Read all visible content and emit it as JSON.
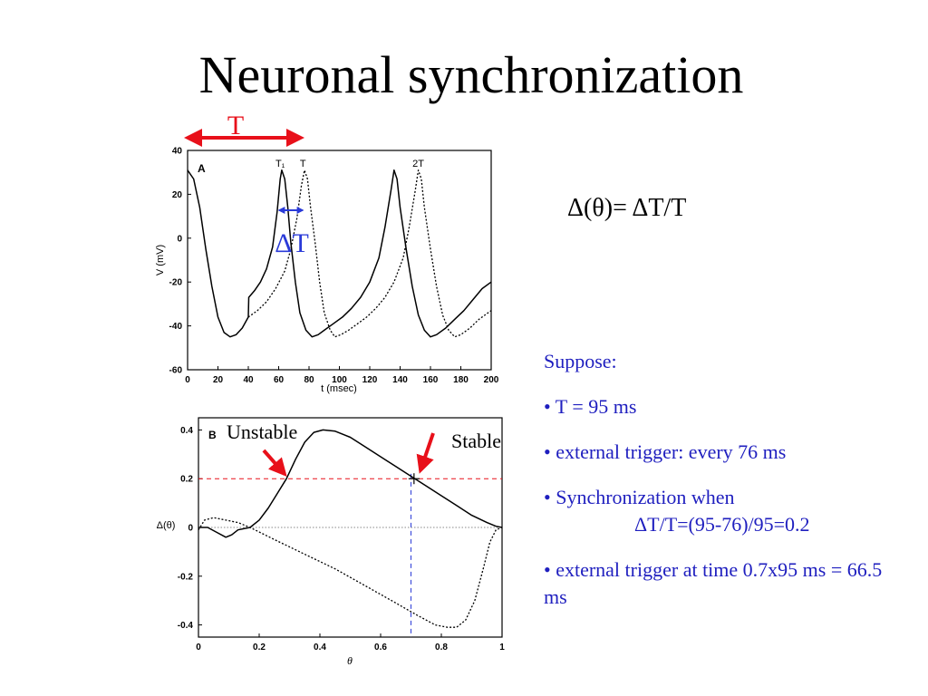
{
  "title": "Neuronal synchronization",
  "formula": "Δ(θ)= ΔT/T",
  "colors": {
    "red": "#e8101a",
    "blue": "#2a3ad8",
    "notes": "#1f1fbf"
  },
  "annotations": {
    "period": "T",
    "delta_t": "ΔT",
    "unstable": "Unstable",
    "stable": "Stable"
  },
  "notes": {
    "suppose": "Suppose:",
    "b1": "• T = 95 ms",
    "b2": "• external trigger: every 76 ms",
    "b3a": "• Synchronization when",
    "b3b": "ΔT/T=(95-76)/95=0.2",
    "b4": "• external trigger at time 0.7x95 ms = 66.5 ms"
  },
  "chart_data": [
    {
      "type": "line",
      "panel_label": "A",
      "xlabel": "t (msec)",
      "ylabel": "V (mV)",
      "xlim": [
        0,
        200
      ],
      "ylim": [
        -60,
        40
      ],
      "xticks": [
        0,
        20,
        40,
        60,
        80,
        100,
        120,
        140,
        160,
        180,
        200
      ],
      "yticks": [
        40,
        20,
        0,
        -20,
        -40,
        -60
      ],
      "top_labels": [
        {
          "text": "T₁",
          "x": 61
        },
        {
          "text": "T",
          "x": 76
        },
        {
          "text": "2T",
          "x": 152
        }
      ],
      "series": [
        {
          "style": "solid",
          "points": [
            [
              0,
              31
            ],
            [
              4,
              27
            ],
            [
              8,
              14
            ],
            [
              12,
              -5
            ],
            [
              16,
              -22
            ],
            [
              20,
              -36
            ],
            [
              24,
              -43
            ],
            [
              28,
              -45
            ],
            [
              32,
              -44
            ],
            [
              36,
              -41
            ],
            [
              40,
              -36
            ],
            [
              40.3,
              -27
            ],
            [
              44,
              -24
            ],
            [
              48,
              -20
            ],
            [
              52,
              -14
            ],
            [
              56,
              -4
            ],
            [
              59,
              12
            ],
            [
              61,
              27
            ],
            [
              62,
              31
            ],
            [
              64,
              27
            ],
            [
              66,
              14
            ],
            [
              68,
              -2
            ],
            [
              71,
              -20
            ],
            [
              74,
              -34
            ],
            [
              78,
              -42
            ],
            [
              82,
              -45
            ],
            [
              86,
              -44
            ],
            [
              90,
              -42
            ],
            [
              96,
              -39
            ],
            [
              102,
              -36
            ],
            [
              108,
              -32
            ],
            [
              114,
              -27
            ],
            [
              120,
              -20
            ],
            [
              126,
              -9
            ],
            [
              130,
              5
            ],
            [
              134,
              22
            ],
            [
              136,
              31
            ],
            [
              138,
              27
            ],
            [
              140,
              14
            ],
            [
              144,
              -5
            ],
            [
              148,
              -22
            ],
            [
              152,
              -35
            ],
            [
              156,
              -42
            ],
            [
              160,
              -45
            ],
            [
              164,
              -44
            ],
            [
              170,
              -41
            ],
            [
              176,
              -37
            ],
            [
              182,
              -33
            ],
            [
              188,
              -28
            ],
            [
              194,
              -23
            ],
            [
              200,
              -20
            ]
          ]
        },
        {
          "style": "dotted",
          "points": [
            [
              40,
              -36
            ],
            [
              46,
              -33
            ],
            [
              52,
              -29
            ],
            [
              58,
              -23
            ],
            [
              64,
              -15
            ],
            [
              68,
              -5
            ],
            [
              72,
              9
            ],
            [
              75,
              24
            ],
            [
              77,
              31
            ],
            [
              79,
              27
            ],
            [
              81,
              14
            ],
            [
              84,
              -2
            ],
            [
              87,
              -20
            ],
            [
              90,
              -34
            ],
            [
              94,
              -42
            ],
            [
              97,
              -45
            ],
            [
              101,
              -44
            ],
            [
              106,
              -42
            ],
            [
              112,
              -39
            ],
            [
              118,
              -36
            ],
            [
              124,
              -32
            ],
            [
              130,
              -27
            ],
            [
              136,
              -20
            ],
            [
              142,
              -9
            ],
            [
              146,
              5
            ],
            [
              150,
              22
            ],
            [
              152,
              31
            ],
            [
              154,
              27
            ],
            [
              156,
              14
            ],
            [
              160,
              -5
            ],
            [
              164,
              -22
            ],
            [
              168,
              -35
            ],
            [
              172,
              -42
            ],
            [
              176,
              -45
            ],
            [
              180,
              -44
            ],
            [
              186,
              -41
            ],
            [
              192,
              -37
            ],
            [
              200,
              -33
            ]
          ]
        }
      ]
    },
    {
      "type": "line",
      "panel_label": "B",
      "xlabel": "θ",
      "ylabel": "Δ(θ)",
      "xlim": [
        0,
        1
      ],
      "ylim": [
        -0.45,
        0.45
      ],
      "xticks": [
        0,
        0.2,
        0.4,
        0.6,
        0.8,
        1
      ],
      "yticks": [
        0.4,
        0.2,
        0,
        -0.2,
        -0.4
      ],
      "reference_lines": [
        {
          "kind": "horizontal",
          "value": 0.2,
          "color": "#e8101a",
          "style": "dashed"
        },
        {
          "kind": "horizontal",
          "value": 0,
          "color": "#888888",
          "style": "dotted"
        },
        {
          "kind": "vertical",
          "value": 0.7,
          "color": "#2a3ad8",
          "style": "dashed"
        }
      ],
      "marked_points": [
        {
          "name": "unstable",
          "x": 0.29,
          "y": 0.2
        },
        {
          "name": "stable",
          "x": 0.71,
          "y": 0.2
        }
      ],
      "series": [
        {
          "style": "solid",
          "points": [
            [
              0,
              0
            ],
            [
              0.03,
              0
            ],
            [
              0.06,
              -0.02
            ],
            [
              0.09,
              -0.04
            ],
            [
              0.11,
              -0.03
            ],
            [
              0.13,
              -0.01
            ],
            [
              0.17,
              0
            ],
            [
              0.2,
              0.03
            ],
            [
              0.23,
              0.08
            ],
            [
              0.26,
              0.14
            ],
            [
              0.29,
              0.2
            ],
            [
              0.32,
              0.28
            ],
            [
              0.35,
              0.35
            ],
            [
              0.38,
              0.39
            ],
            [
              0.41,
              0.4
            ],
            [
              0.45,
              0.395
            ],
            [
              0.5,
              0.37
            ],
            [
              0.55,
              0.33
            ],
            [
              0.6,
              0.29
            ],
            [
              0.65,
              0.25
            ],
            [
              0.7,
              0.21
            ],
            [
              0.75,
              0.17
            ],
            [
              0.8,
              0.13
            ],
            [
              0.85,
              0.09
            ],
            [
              0.9,
              0.05
            ],
            [
              0.95,
              0.02
            ],
            [
              0.98,
              0.005
            ],
            [
              1,
              0
            ]
          ]
        },
        {
          "style": "dotted",
          "points": [
            [
              0,
              -0.01
            ],
            [
              0.02,
              0.03
            ],
            [
              0.05,
              0.04
            ],
            [
              0.09,
              0.03
            ],
            [
              0.13,
              0.02
            ],
            [
              0.17,
              0
            ],
            [
              0.25,
              -0.05
            ],
            [
              0.35,
              -0.11
            ],
            [
              0.45,
              -0.17
            ],
            [
              0.55,
              -0.24
            ],
            [
              0.65,
              -0.31
            ],
            [
              0.72,
              -0.36
            ],
            [
              0.78,
              -0.4
            ],
            [
              0.82,
              -0.41
            ],
            [
              0.85,
              -0.41
            ],
            [
              0.88,
              -0.38
            ],
            [
              0.91,
              -0.3
            ],
            [
              0.94,
              -0.16
            ],
            [
              0.96,
              -0.06
            ],
            [
              0.98,
              -0.01
            ],
            [
              1,
              0
            ]
          ]
        }
      ]
    }
  ]
}
